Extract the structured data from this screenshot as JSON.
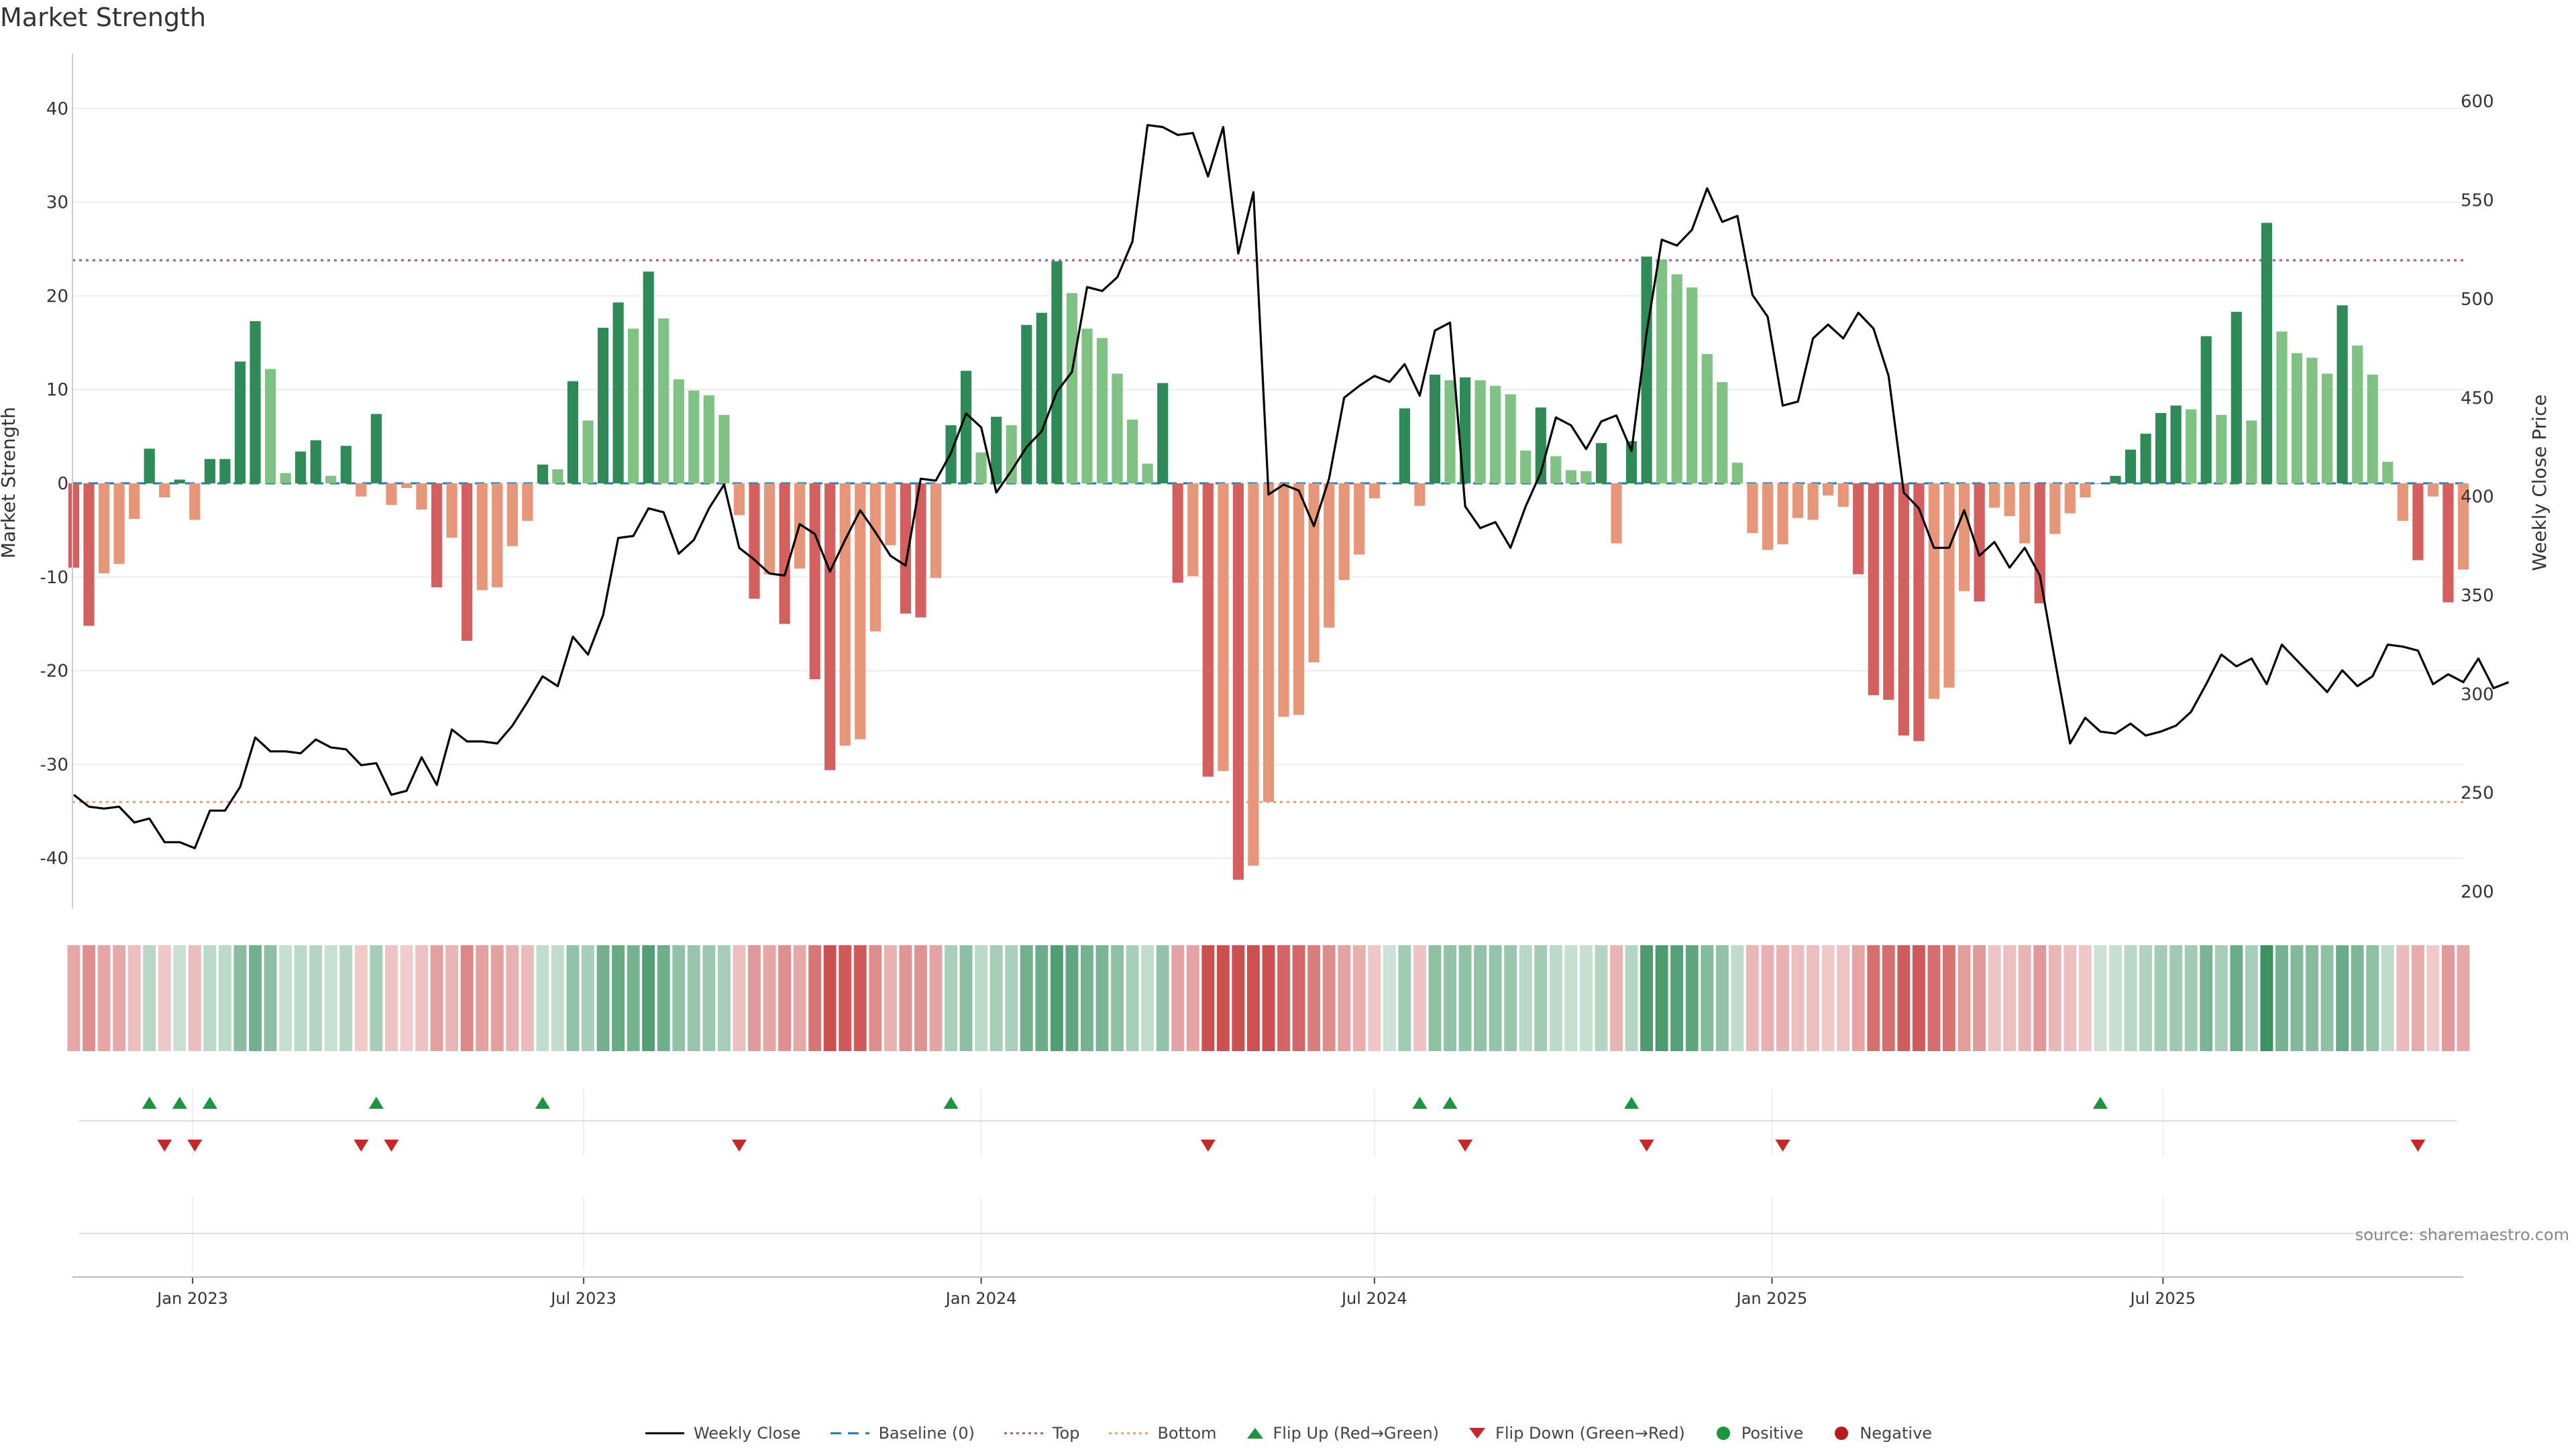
{
  "title": "Market Strength",
  "source": "source: sharemaestro.com",
  "chart_data": {
    "type": "bar",
    "y_left_label": "Market Strength",
    "y_right_label": "Weekly Close Price",
    "y_left_ticks": [
      "40",
      "30",
      "20",
      "10",
      "0",
      "-10",
      "-20",
      "-30",
      "-40"
    ],
    "y_right_ticks": [
      "600",
      "550",
      "500",
      "450",
      "400",
      "350",
      "300",
      "250",
      "200"
    ],
    "x_ticks": [
      "Jan 2023",
      "Jul 2023",
      "Jan 2024",
      "Jul 2024",
      "Jan 2025",
      "Jul 2025"
    ],
    "ylim_left": [
      -45,
      45
    ],
    "ylim_right": [
      195,
      605
    ],
    "top_level": 23.8,
    "bottom_level": -34,
    "grid": true,
    "legend_position": "bottom-center",
    "colors": {
      "strong_pos": "#2e8b57",
      "weak_pos": "#7fc283",
      "strong_neg": "#d35f5f",
      "weak_neg": "#e8967a",
      "line": "#000000",
      "top": "#a055a0",
      "bottom": "#e8a070",
      "baseline": "#1f77b4",
      "flip_up": "#1a9641",
      "flip_down": "#c62828"
    },
    "series": [
      {
        "name": "Market Strength",
        "values": [
          -9,
          -15.2,
          -9.6,
          -8.6,
          -3.8,
          3.7,
          -1.5,
          0.4,
          -3.9,
          2.6,
          2.6,
          13,
          17.3,
          12.2,
          1.1,
          3.4,
          4.6,
          0.8,
          4,
          -1.4,
          7.4,
          -2.3,
          -0.5,
          -2.8,
          -11.1,
          -5.8,
          -16.8,
          -11.4,
          -11.1,
          -6.7,
          -4,
          2,
          1.5,
          10.9,
          6.7,
          16.6,
          19.3,
          16.5,
          22.6,
          17.6,
          11.1,
          9.9,
          9.4,
          7.3,
          -3.4,
          -12.3,
          -9.7,
          -15,
          -9.1,
          -20.9,
          -30.6,
          -28,
          -27.3,
          -15.8,
          -6.6,
          -13.9,
          -14.3,
          -10.1,
          6.2,
          12,
          3.3,
          7.1,
          6.2,
          16.9,
          18.2,
          23.7,
          20.3,
          16.5,
          15.5,
          11.7,
          6.8,
          2.1,
          10.7,
          -10.6,
          -9.9,
          -31.3,
          -30.7,
          -42.3,
          -40.8,
          -34,
          -24.9,
          -24.7,
          -19.1,
          -15.4,
          -10.3,
          -7.6,
          -1.6,
          0,
          8,
          -2.4,
          11.6,
          11,
          11.3,
          11,
          10.4,
          9.5,
          3.5,
          8.1,
          2.9,
          1.4,
          1.3,
          4.3,
          -6.4,
          4.5,
          24.2,
          23.9,
          22.3,
          20.9,
          13.8,
          10.8,
          2.2,
          -5.3,
          -7.1,
          -6.5,
          -3.7,
          -3.9,
          -1.3,
          -2.5,
          -9.7,
          -22.6,
          -23.1,
          -26.9,
          -27.5,
          -23,
          -21.8,
          -11.5,
          -12.6,
          -2.6,
          -3.5,
          -6.4,
          -12.8,
          -5.4,
          -3.2,
          -1.5,
          0,
          0.8,
          3.6,
          5.3,
          7.5,
          8.3,
          7.9,
          15.7,
          7.3,
          18.3,
          6.7,
          27.8,
          16.2,
          13.9,
          13.4,
          11.7,
          19,
          14.7,
          11.6,
          2.3,
          -4,
          -8.2,
          -1.4,
          -12.7,
          -9.2
        ],
        "categories_span": [
          "2022-11-07",
          "2025-09-29"
        ]
      },
      {
        "name": "Weekly Close",
        "values": [
          249,
          243,
          242,
          243,
          235,
          237,
          225,
          225,
          222,
          241,
          241,
          253,
          278,
          271,
          271,
          270,
          277,
          273,
          272,
          264,
          265,
          249,
          251,
          268,
          254,
          282,
          276,
          276,
          275,
          284,
          296,
          309,
          304,
          329,
          320,
          340,
          379,
          380,
          394,
          392,
          371,
          378,
          394,
          406,
          374,
          368,
          361,
          360,
          386,
          381,
          362,
          378,
          393,
          382,
          370,
          365,
          409,
          408,
          422,
          442,
          435,
          402,
          413,
          425,
          433,
          453,
          463,
          506,
          504,
          511,
          529,
          588,
          587,
          583,
          584,
          562,
          587,
          523,
          554,
          401,
          406,
          403,
          385,
          409,
          450,
          456,
          461,
          458,
          467,
          451,
          484,
          488,
          395,
          384,
          387,
          374,
          395,
          412,
          440,
          436,
          424,
          438,
          441,
          423,
          483,
          530,
          527,
          535,
          556,
          539,
          542,
          502,
          491,
          446,
          448,
          480,
          487,
          480,
          493,
          485,
          461,
          402,
          394,
          374,
          374,
          393,
          370,
          377,
          364,
          374,
          360,
          317,
          275,
          288,
          281,
          280,
          285,
          279,
          281,
          284,
          291,
          305,
          320,
          314,
          318,
          305,
          325,
          317,
          309,
          301,
          312,
          304,
          309,
          325,
          324,
          322,
          305,
          310,
          306,
          318,
          303,
          306
        ],
        "categories_span": [
          "2022-11-07",
          "2025-09-29"
        ]
      }
    ],
    "flip_up_weeks": [
      5,
      7,
      9,
      20,
      31,
      58,
      89,
      91,
      103,
      134
    ],
    "flip_down_weeks": [
      6,
      8,
      19,
      21,
      44,
      75,
      92,
      104,
      113,
      155
    ]
  },
  "legend": [
    {
      "label": "Weekly Close",
      "icon": "line-icon"
    },
    {
      "label": "Baseline (0)",
      "icon": "dash-icon"
    },
    {
      "label": "Top",
      "icon": "dotted-line-icon"
    },
    {
      "label": "Bottom",
      "icon": "dotted-line-icon"
    },
    {
      "label": "Flip Up (Red→Green)",
      "icon": "triangle-up-icon"
    },
    {
      "label": "Flip Down (Green→Red)",
      "icon": "triangle-down-icon"
    },
    {
      "label": "Positive",
      "icon": "dot-icon"
    },
    {
      "label": "Negative",
      "icon": "dot-icon"
    }
  ]
}
